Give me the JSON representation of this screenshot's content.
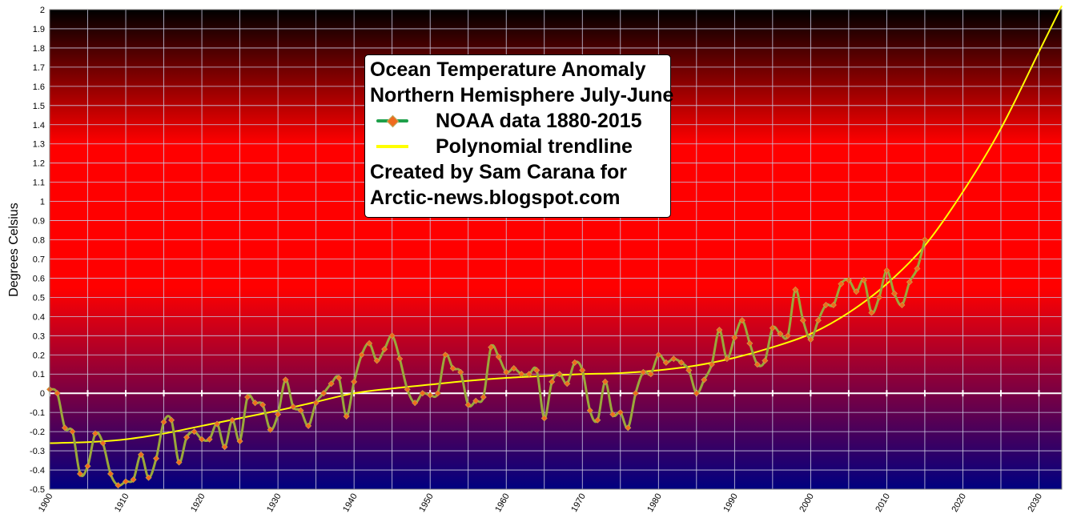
{
  "chart_data": {
    "type": "line",
    "title": "Ocean Temperature Anomaly",
    "subtitle": "Northern Hemisphere July-June",
    "credit_line1": "Created by Sam Carana for",
    "credit_line2": "Arctic-news.blogspot.com",
    "ylabel": "Degrees Celsius",
    "xlabel": "",
    "xlim": [
      1900,
      2033
    ],
    "ylim": [
      -0.5,
      2.0
    ],
    "y_ticks": [
      "-0.5",
      "-0.4",
      "-0.3",
      "-0.2",
      "-0.1",
      "0",
      "0.1",
      "0.2",
      "0.3",
      "0.4",
      "0.5",
      "0.6",
      "0.7",
      "0.8",
      "0.9",
      "1",
      "1.1",
      "1.2",
      "1.3",
      "1.4",
      "1.5",
      "1.6",
      "1.7",
      "1.8",
      "1.9",
      "2"
    ],
    "x_ticks": [
      "1900",
      "1910",
      "1920",
      "1930",
      "1940",
      "1950",
      "1960",
      "1970",
      "1980",
      "1990",
      "2000",
      "2010",
      "2020",
      "2030"
    ],
    "grid": true,
    "legend_position": "top-center",
    "background_gradient": [
      "#000000",
      "#ff0000",
      "#ff0000",
      "#000080"
    ],
    "series": [
      {
        "name": "NOAA data 1880-2015",
        "color": "#9aa83a",
        "marker_color": "#f06a1e",
        "x": [
          1900,
          1901,
          1902,
          1903,
          1904,
          1905,
          1906,
          1907,
          1908,
          1909,
          1910,
          1911,
          1912,
          1913,
          1914,
          1915,
          1916,
          1917,
          1918,
          1919,
          1920,
          1921,
          1922,
          1923,
          1924,
          1925,
          1926,
          1927,
          1928,
          1929,
          1930,
          1931,
          1932,
          1933,
          1934,
          1935,
          1936,
          1937,
          1938,
          1939,
          1940,
          1941,
          1942,
          1943,
          1944,
          1945,
          1946,
          1947,
          1948,
          1949,
          1950,
          1951,
          1952,
          1953,
          1954,
          1955,
          1956,
          1957,
          1958,
          1959,
          1960,
          1961,
          1962,
          1963,
          1964,
          1965,
          1966,
          1967,
          1968,
          1969,
          1970,
          1971,
          1972,
          1973,
          1974,
          1975,
          1976,
          1977,
          1978,
          1979,
          1980,
          1981,
          1982,
          1983,
          1984,
          1985,
          1986,
          1987,
          1988,
          1989,
          1990,
          1991,
          1992,
          1993,
          1994,
          1995,
          1996,
          1997,
          1998,
          1999,
          2000,
          2001,
          2002,
          2003,
          2004,
          2005,
          2006,
          2007,
          2008,
          2009,
          2010,
          2011,
          2012,
          2013,
          2014,
          2015
        ],
        "values": [
          0.02,
          0.0,
          -0.18,
          -0.2,
          -0.42,
          -0.38,
          -0.21,
          -0.26,
          -0.42,
          -0.48,
          -0.46,
          -0.45,
          -0.32,
          -0.44,
          -0.34,
          -0.15,
          -0.14,
          -0.36,
          -0.23,
          -0.2,
          -0.24,
          -0.24,
          -0.16,
          -0.28,
          -0.14,
          -0.25,
          -0.02,
          -0.05,
          -0.06,
          -0.19,
          -0.11,
          0.07,
          -0.07,
          -0.09,
          -0.17,
          -0.05,
          0.0,
          0.05,
          0.08,
          -0.12,
          0.06,
          0.2,
          0.26,
          0.17,
          0.23,
          0.3,
          0.18,
          0.02,
          -0.05,
          0.0,
          -0.01,
          0.0,
          0.2,
          0.13,
          0.11,
          -0.06,
          -0.04,
          -0.02,
          0.24,
          0.19,
          0.11,
          0.13,
          0.1,
          0.1,
          0.12,
          -0.13,
          0.06,
          0.1,
          0.05,
          0.16,
          0.12,
          -0.09,
          -0.14,
          0.06,
          -0.11,
          -0.1,
          -0.18,
          0.0,
          0.11,
          0.1,
          0.2,
          0.16,
          0.18,
          0.16,
          0.12,
          0.0,
          0.07,
          0.15,
          0.33,
          0.18,
          0.29,
          0.38,
          0.26,
          0.15,
          0.17,
          0.34,
          0.31,
          0.3,
          0.54,
          0.38,
          0.28,
          0.38,
          0.46,
          0.46,
          0.57,
          0.59,
          0.53,
          0.59,
          0.42,
          0.5,
          0.64,
          0.52,
          0.46,
          0.58,
          0.65,
          0.8
        ]
      },
      {
        "name": "Polynomial trendline",
        "color": "#ffff00",
        "x": [
          1900,
          1905,
          1910,
          1915,
          1920,
          1925,
          1930,
          1935,
          1940,
          1945,
          1950,
          1955,
          1960,
          1965,
          1970,
          1975,
          1980,
          1985,
          1990,
          1995,
          2000,
          2005,
          2010,
          2015,
          2020,
          2025,
          2030,
          2033
        ],
        "values": [
          -0.26,
          -0.255,
          -0.24,
          -0.21,
          -0.17,
          -0.13,
          -0.09,
          -0.045,
          0.0,
          0.025,
          0.045,
          0.065,
          0.08,
          0.09,
          0.1,
          0.105,
          0.12,
          0.145,
          0.185,
          0.24,
          0.31,
          0.42,
          0.57,
          0.77,
          1.05,
          1.38,
          1.78,
          2.02
        ]
      }
    ]
  }
}
